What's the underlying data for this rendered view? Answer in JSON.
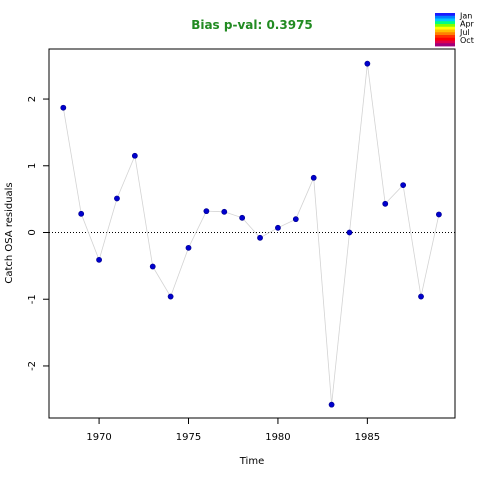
{
  "chart_data": {
    "type": "scatter",
    "title": "Bias p-val: 0.3975",
    "title_color": "#228B22",
    "xlabel": "Time",
    "ylabel": "Catch OSA residuals",
    "xlim": [
      1967.2,
      1989.9
    ],
    "ylim": [
      -2.78,
      2.75
    ],
    "x_ticks": [
      1970,
      1975,
      1980,
      1985
    ],
    "y_ticks": [
      -2,
      -1,
      0,
      1,
      2
    ],
    "reference_line": 0,
    "point_color": "#0000CD",
    "line_color": "#D3D3D3",
    "grid": false,
    "legend": {
      "position": "top-right",
      "labels": [
        "Jan",
        "Apr",
        "Jul",
        "Oct"
      ],
      "colors": [
        "#1a1aff",
        "#0080ff",
        "#00c8ff",
        "#00ff80",
        "#80ff00",
        "#ffff00",
        "#ffc000",
        "#ff8000",
        "#ff3000",
        "#ff0000",
        "#e0004a",
        "#a0007a"
      ]
    },
    "series": [
      {
        "x": [
          1968,
          1969,
          1970,
          1971,
          1972,
          1973,
          1974,
          1975,
          1976,
          1977,
          1978,
          1979,
          1980,
          1981,
          1982,
          1983,
          1984,
          1985,
          1986,
          1987,
          1988,
          1989
        ],
        "y": [
          1.87,
          0.28,
          -0.41,
          0.51,
          1.15,
          -0.51,
          -0.96,
          -0.23,
          0.32,
          0.31,
          0.22,
          -0.08,
          0.07,
          0.2,
          0.82,
          -2.58,
          0.0,
          2.53,
          0.43,
          0.71,
          -0.96,
          0.27
        ]
      }
    ]
  }
}
